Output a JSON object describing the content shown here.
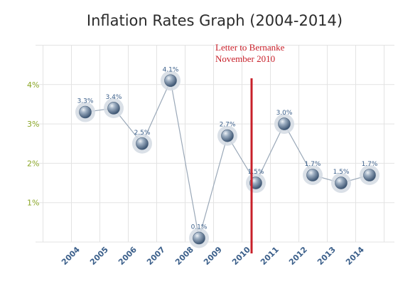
{
  "chart_data": {
    "type": "line",
    "title": "Inflation Rates Graph (2004-2014)",
    "xlabel": "",
    "ylabel": "",
    "categories": [
      "2004",
      "2005",
      "2006",
      "2007",
      "2008",
      "2009",
      "2010",
      "2011",
      "2012",
      "2013",
      "2014"
    ],
    "values": [
      3.3,
      3.4,
      2.5,
      4.1,
      0.1,
      2.7,
      1.5,
      3.0,
      1.7,
      1.5,
      1.7
    ],
    "data_labels": [
      "3.3%",
      "3.4%",
      "2.5%",
      "4.1%",
      "0.1%",
      "2.7%",
      "1.5%",
      "3.0%",
      "1.7%",
      "1.5%",
      "1.7%"
    ],
    "ylim": [
      0,
      5
    ],
    "yticks": [
      {
        "value": 1,
        "label": "1%"
      },
      {
        "value": 2,
        "label": "2%"
      },
      {
        "value": 3,
        "label": "3%"
      },
      {
        "value": 4,
        "label": "4%"
      }
    ],
    "grid": true,
    "marker_line": {
      "between": [
        "2010",
        "2011"
      ],
      "label_line1": "Letter to Bernanke",
      "label_line2": "November 2010",
      "color": "#c8202a"
    },
    "colors": {
      "line": "#9aa8b8",
      "marker": "#5f7894",
      "halo": "#d4dbe3",
      "grid": "#e3e3e3",
      "ytick": "#8aa626",
      "xtick": "#3b5f8a"
    }
  }
}
